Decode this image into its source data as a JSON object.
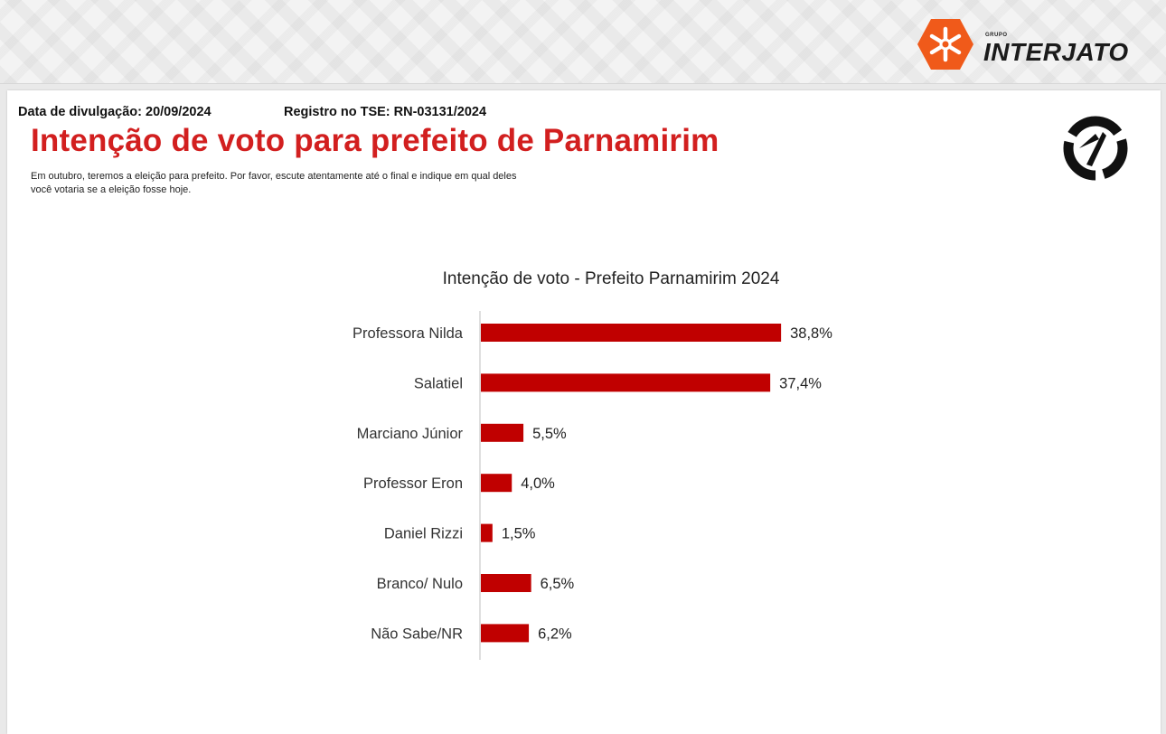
{
  "header": {
    "brand_small": "GRUPO",
    "brand_name": "INTERJATO"
  },
  "meta": {
    "release_date": "Data de divulgação: 20/09/2024",
    "registration": "Registro no TSE: RN-03131/2024"
  },
  "headline": "Intenção de voto para prefeito de Parnamirim",
  "intro": "Em outubro, teremos a eleição para prefeito. Por favor, escute atentamente até o final e indique em qual deles você votaria se a eleição fosse hoje.",
  "colors": {
    "headline": "#d21f1f",
    "bar": "#c00000",
    "logo_orange": "#f05a1a"
  },
  "chart_data": {
    "type": "bar",
    "orientation": "horizontal",
    "title": "Intenção de voto - Prefeito Parnamirim 2024",
    "categories": [
      "Professora Nilda",
      "Salatiel",
      "Marciano Júnior",
      "Professor Eron",
      "Daniel Rizzi",
      "Branco/ Nulo",
      "Não Sabe/NR"
    ],
    "values": [
      38.8,
      37.4,
      5.5,
      4.0,
      1.5,
      6.5,
      6.2
    ],
    "value_labels": [
      "38,8%",
      "37,4%",
      "5,5%",
      "4,0%",
      "1,5%",
      "6,5%",
      "6,2%"
    ],
    "unit": "%",
    "xlim": [
      0,
      40
    ],
    "grid": false,
    "legend": "none"
  }
}
